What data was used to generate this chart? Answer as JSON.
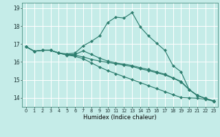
{
  "xlabel": "Humidex (Indice chaleur)",
  "xlim": [
    -0.5,
    23.5
  ],
  "ylim": [
    13.5,
    19.3
  ],
  "bg_color": "#c5ece8",
  "grid_color": "#ffffff",
  "line_color": "#2d7d6e",
  "xticks": [
    0,
    1,
    2,
    3,
    4,
    5,
    6,
    7,
    8,
    9,
    10,
    11,
    12,
    13,
    14,
    15,
    16,
    17,
    18,
    19,
    20,
    21,
    22,
    23
  ],
  "yticks": [
    14,
    15,
    16,
    17,
    18,
    19
  ],
  "lines": [
    {
      "x": [
        0,
        1,
        2,
        3,
        4,
        5,
        6,
        7,
        8,
        9,
        10,
        11,
        12,
        13,
        14,
        15,
        16,
        17,
        18,
        19,
        20,
        21,
        22,
        23
      ],
      "y": [
        16.85,
        16.6,
        16.65,
        16.65,
        16.5,
        16.45,
        16.5,
        16.9,
        17.15,
        17.45,
        18.2,
        18.5,
        18.45,
        18.75,
        17.95,
        17.45,
        17.05,
        16.65,
        15.8,
        15.45,
        14.45,
        14.15,
        13.95,
        13.82
      ]
    },
    {
      "x": [
        0,
        1,
        2,
        3,
        4,
        5,
        6,
        7,
        8,
        9,
        10,
        11,
        12,
        13,
        14,
        15,
        16,
        17,
        18,
        19,
        20,
        21,
        22,
        23
      ],
      "y": [
        16.85,
        16.6,
        16.65,
        16.65,
        16.5,
        16.4,
        16.38,
        16.28,
        16.15,
        16.05,
        15.98,
        15.9,
        15.82,
        15.75,
        15.62,
        15.52,
        15.4,
        15.28,
        15.1,
        14.88,
        14.45,
        14.12,
        13.97,
        13.82
      ]
    },
    {
      "x": [
        0,
        1,
        2,
        3,
        4,
        5,
        6,
        7,
        8,
        9,
        10,
        11,
        12,
        13,
        14,
        15,
        16,
        17,
        18,
        19,
        20,
        21,
        22,
        23
      ],
      "y": [
        16.85,
        16.6,
        16.65,
        16.65,
        16.5,
        16.42,
        16.42,
        16.62,
        16.42,
        16.22,
        16.05,
        15.95,
        15.88,
        15.8,
        15.68,
        15.58,
        15.45,
        15.32,
        15.12,
        14.92,
        14.47,
        14.13,
        13.98,
        13.83
      ]
    },
    {
      "x": [
        0,
        1,
        2,
        3,
        4,
        5,
        6,
        7,
        8,
        9,
        10,
        11,
        12,
        13,
        14,
        15,
        16,
        17,
        18,
        19,
        20,
        21,
        22,
        23
      ],
      "y": [
        16.85,
        16.6,
        16.65,
        16.65,
        16.5,
        16.38,
        16.32,
        16.18,
        15.95,
        15.72,
        15.52,
        15.35,
        15.18,
        15.02,
        14.85,
        14.68,
        14.52,
        14.35,
        14.18,
        14.02,
        14.0,
        13.98,
        13.92,
        13.82
      ]
    }
  ]
}
